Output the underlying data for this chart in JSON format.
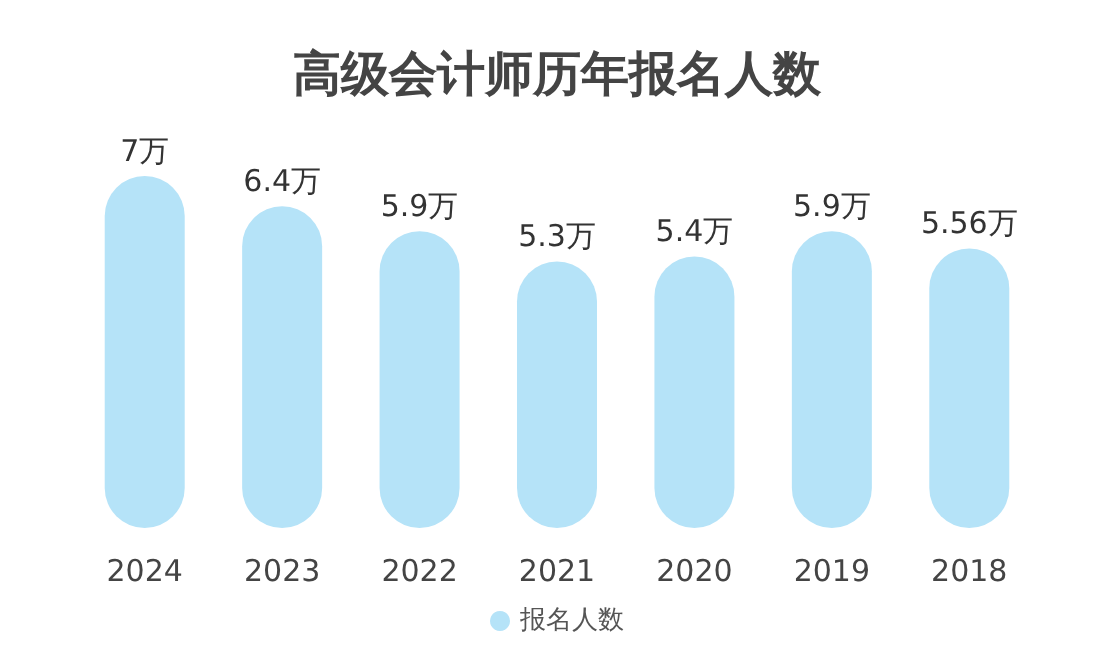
{
  "chart_data": {
    "type": "bar",
    "title": "高级会计师历年报名人数",
    "categories": [
      "2024",
      "2023",
      "2022",
      "2021",
      "2020",
      "2019",
      "2018"
    ],
    "series": [
      {
        "name": "报名人数",
        "color": "#b5e3f8",
        "values": [
          7,
          6.4,
          5.9,
          5.3,
          5.4,
          5.9,
          5.56
        ],
        "value_labels": [
          "7万",
          "6.4万",
          "5.9万",
          "5.3万",
          "5.4万",
          "5.9万",
          "5.56万"
        ]
      }
    ],
    "legend": "bottom"
  }
}
